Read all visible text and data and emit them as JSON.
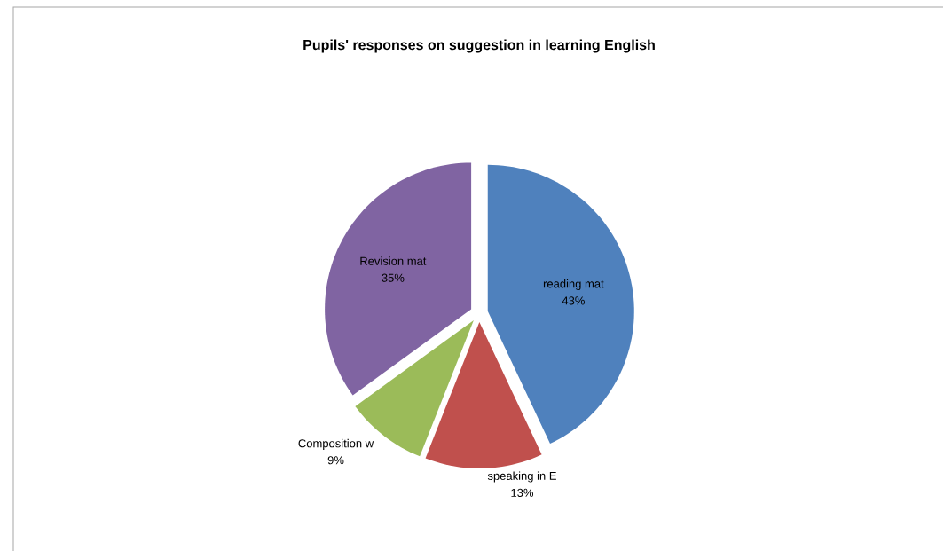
{
  "chart_data": {
    "type": "pie",
    "title": "Pupils' responses on suggestion in learning English",
    "categories": [
      "reading mat",
      "speaking in E",
      "Composition w",
      "Revision mat"
    ],
    "values": [
      43,
      13,
      9,
      35
    ],
    "value_labels": [
      "43%",
      "13%",
      "9%",
      "35%"
    ],
    "colors": [
      "#4f81bd",
      "#c0504d",
      "#9bbb59",
      "#8064a2"
    ]
  }
}
